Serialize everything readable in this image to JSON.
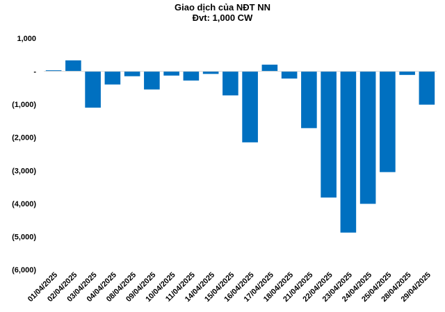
{
  "chart_data": {
    "type": "bar",
    "title": "Giao dịch của NĐT NN",
    "subtitle": "Đvt: 1,000 CW",
    "xlabel": "",
    "ylabel": "",
    "categories": [
      "01/04/2025",
      "02/04/2025",
      "03/04/2025",
      "04/04/2025",
      "08/04/2025",
      "09/04/2025",
      "10/04/2025",
      "11/04/2025",
      "14/04/2025",
      "15/04/2025",
      "16/04/2025",
      "17/04/2025",
      "18/04/2025",
      "21/04/2025",
      "22/04/2025",
      "23/04/2025",
      "24/04/2025",
      "25/04/2025",
      "28/04/2025",
      "29/04/2025"
    ],
    "series": [
      {
        "values": [
          30,
          330,
          -1100,
          -400,
          -150,
          -550,
          -130,
          -280,
          -80,
          -730,
          -2150,
          200,
          -220,
          -1720,
          -3820,
          -4880,
          -4010,
          -3050,
          -110,
          -1010
        ]
      }
    ],
    "ylim": [
      -6000,
      1000
    ],
    "yticks": [
      1000,
      0,
      -1000,
      -2000,
      -3000,
      -4000,
      -5000,
      -6000
    ],
    "ytick_labels": [
      "1,000",
      "-",
      "(1,000)",
      "(2,000)",
      "(3,000)",
      "(4,000)",
      "(5,000)",
      "(6,000)"
    ],
    "grid": false,
    "legend": "none",
    "colors": {
      "bar": "#0070C0",
      "axis": "#D9D9D9"
    }
  }
}
